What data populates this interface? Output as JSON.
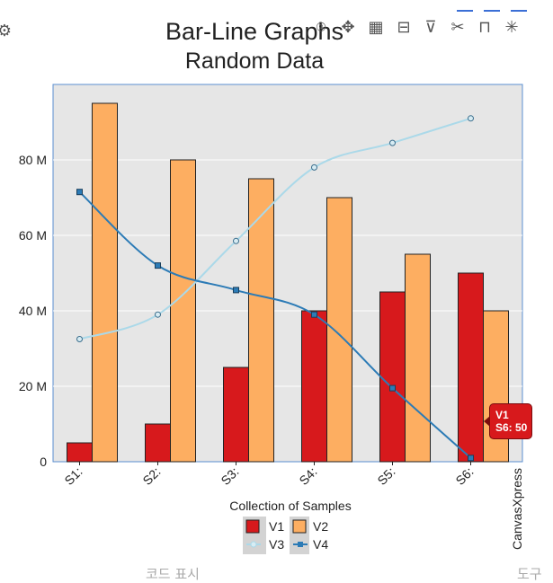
{
  "chart_data": {
    "type": "bar",
    "title": "Bar-Line Graphs",
    "subtitle": "Random Data",
    "xlabel": "Collection of Samples",
    "ylabel": "",
    "categories": [
      "S1",
      "S2",
      "S3",
      "S4",
      "S5",
      "S6"
    ],
    "category_tick_labels": [
      "S1:",
      "S2:",
      "S3:",
      "S4:",
      "S5:",
      "S6:"
    ],
    "ylim": [
      0,
      100
    ],
    "yticks": [
      0,
      20,
      40,
      60,
      80
    ],
    "ytick_labels": [
      "0",
      "20 M",
      "40 M",
      "60 M",
      "80 M"
    ],
    "grid": true,
    "legend_position": "bottom",
    "series": [
      {
        "name": "V1",
        "type": "bar",
        "color": "#d7191c",
        "values": [
          5,
          10,
          25,
          40,
          45,
          50
        ]
      },
      {
        "name": "V2",
        "type": "bar",
        "color": "#fdae61",
        "values": [
          95,
          80,
          75,
          70,
          55,
          40
        ]
      },
      {
        "name": "V3",
        "type": "line",
        "color": "#abd9e9",
        "values": [
          32.5,
          39,
          58.5,
          78,
          84.5,
          91
        ]
      },
      {
        "name": "V4",
        "type": "line",
        "color": "#2c7bb6",
        "values": [
          71.5,
          52,
          45.5,
          39,
          19.5,
          1
        ]
      }
    ],
    "tooltip": {
      "series": "V1",
      "text": "S6: 50"
    },
    "watermark": "CanvasXpress"
  },
  "toolbar": {
    "icons": [
      "camera-icon",
      "move-icon",
      "table-icon",
      "column-config-icon",
      "filter-icon",
      "tools-icon",
      "lock-icon",
      "fullscreen-icon"
    ]
  },
  "bottom_bar": {
    "left_text": "코드 표시",
    "right_text": "도구"
  },
  "colors": {
    "plot_background": "#e6e6e6",
    "plot_border": "#5b8fd0",
    "page_background": "#ffffff"
  }
}
